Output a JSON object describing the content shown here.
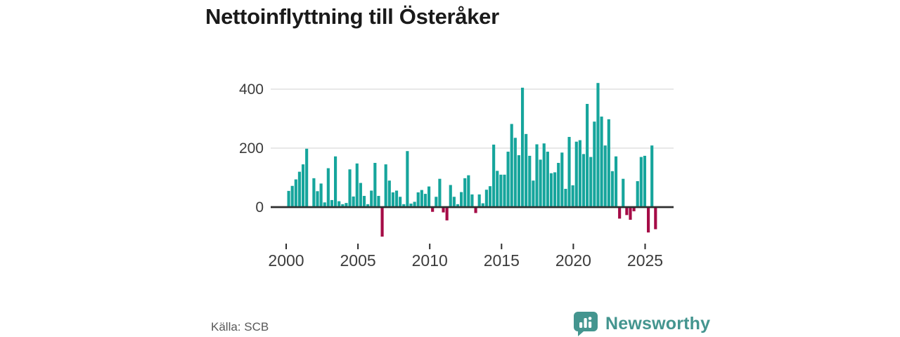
{
  "title": "Nettoinflyttning till Österåker",
  "source": "Källa: SCB",
  "logo": {
    "text": "Newsworthy",
    "icon": "bar-chart-bubble-icon"
  },
  "colors": {
    "positive_bar": "#16a59c",
    "negative_bar": "#a50b46",
    "zero_axis": "#2e2e2e",
    "gridline": "#dadada",
    "axis_text": "#3c3c3c",
    "title_text": "#1a1a1a",
    "source_text": "#595959",
    "logo_teal": "#44958f"
  },
  "chart_data": {
    "type": "bar",
    "title": "Nettoinflyttning till Österåker",
    "frequency": "quarterly",
    "start_period": "2000Q1",
    "end_period": "2025Q3",
    "x_tick_labels": [
      "2000",
      "2005",
      "2010",
      "2015",
      "2020",
      "2025"
    ],
    "y_tick_labels": [
      "0",
      "200",
      "400"
    ],
    "y_ticks": [
      0,
      200,
      400
    ],
    "ylim": [
      -120,
      440
    ],
    "grid": "horizontal",
    "legend": "none",
    "values": [
      55,
      72,
      94,
      120,
      145,
      198,
      3,
      98,
      54,
      80,
      16,
      132,
      24,
      172,
      20,
      10,
      14,
      128,
      36,
      148,
      82,
      38,
      10,
      56,
      150,
      38,
      -100,
      145,
      90,
      50,
      56,
      35,
      10,
      190,
      12,
      18,
      50,
      58,
      45,
      70,
      -16,
      35,
      96,
      -18,
      -45,
      75,
      35,
      10,
      51,
      98,
      108,
      43,
      -20,
      43,
      13,
      59,
      71,
      212,
      123,
      110,
      110,
      188,
      282,
      235,
      176,
      405,
      248,
      174,
      90,
      213,
      161,
      216,
      188,
      115,
      118,
      150,
      185,
      62,
      238,
      74,
      222,
      227,
      180,
      350,
      170,
      290,
      421,
      307,
      209,
      298,
      122,
      172,
      -39,
      96,
      -27,
      -43,
      -14,
      88,
      170,
      174,
      -86,
      209,
      -75
    ]
  }
}
